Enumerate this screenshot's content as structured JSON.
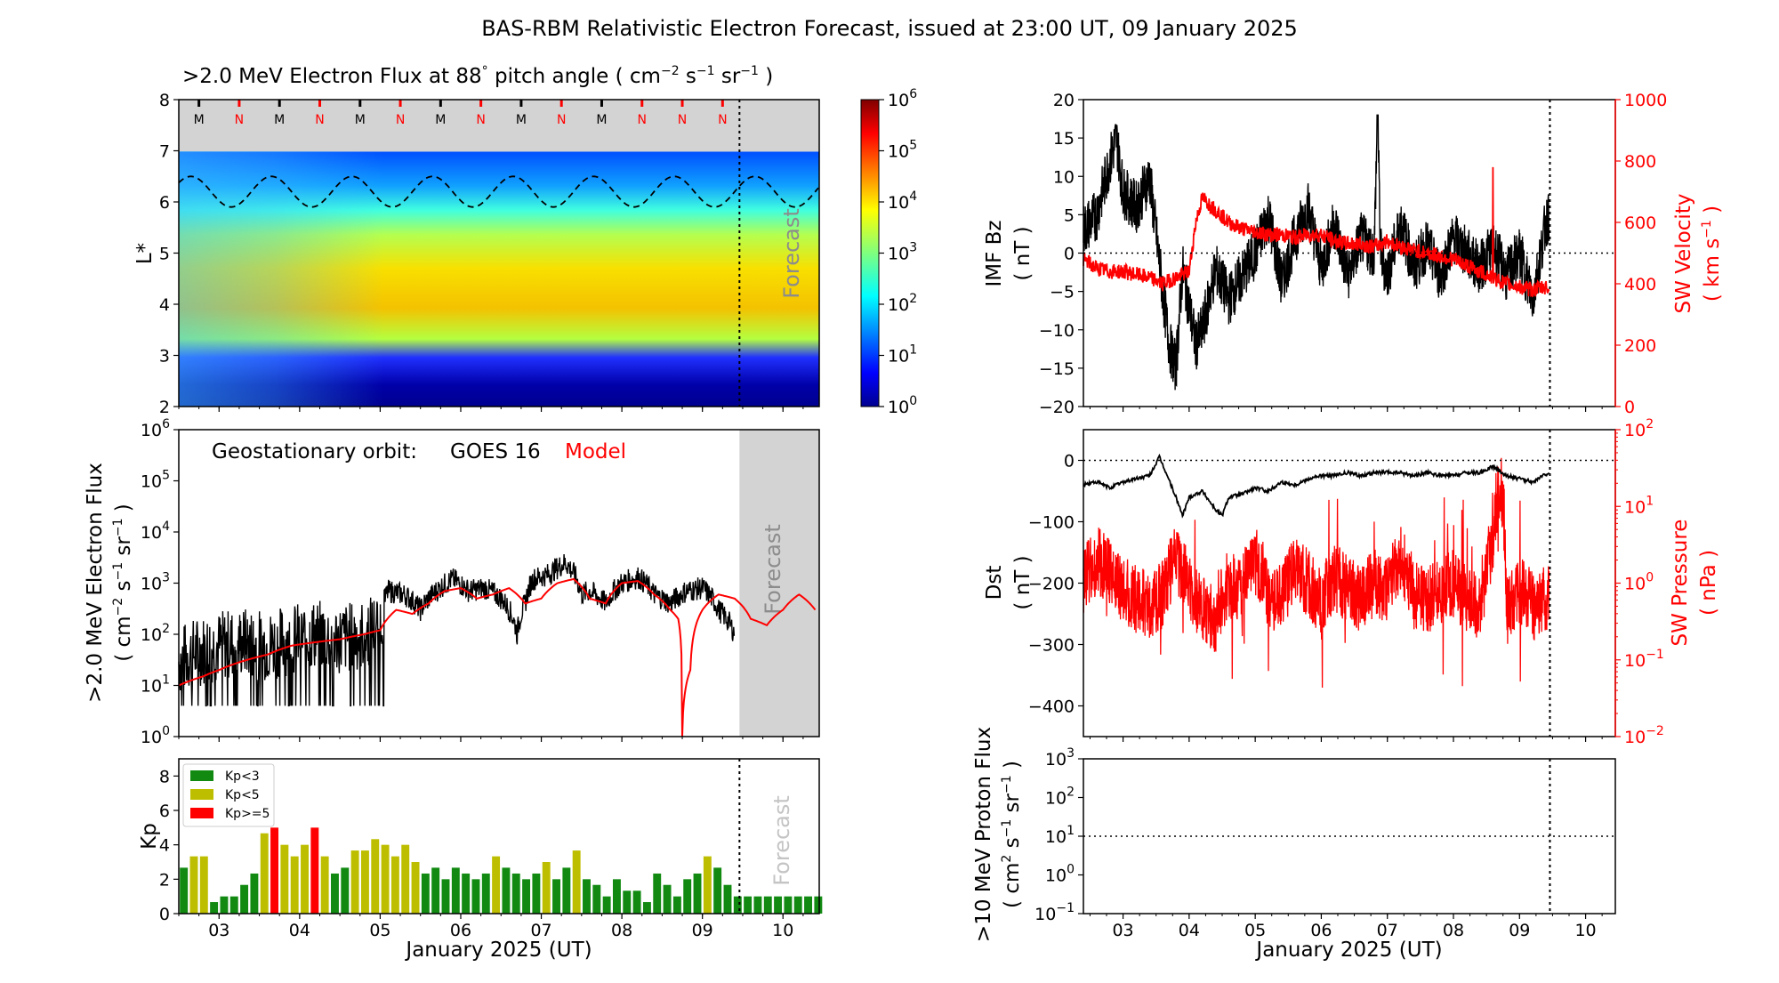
{
  "title": "BAS-RBM Relativistic Electron Forecast, issued at 23:00 UT, 09 January 2025",
  "colors": {
    "model": "#ff0000",
    "goes": "#000000",
    "kp_low": "#128a12",
    "kp_mid": "#bebe00",
    "kp_high": "#ff0000",
    "forecast_shade": "#d3d3d3"
  },
  "panels": {
    "flux_map": {
      "title_prefix": ">2.0 MeV Electron Flux at 88",
      "title_sup_deg": "°",
      "title_mid": " pitch angle ( cm",
      "title_sup_a": "−2",
      "title_mid2": " s",
      "title_sup_b": "−1",
      "title_mid3": " sr",
      "title_sup_c": "−1",
      "title_end": " )",
      "ylabel": "L*",
      "forecast_label": "Forecast",
      "mn_markers": [
        "M",
        "N",
        "M",
        "N",
        "M",
        "N",
        "M",
        "N",
        "M",
        "N",
        "M",
        "N",
        "N",
        "N"
      ],
      "colorbar_ticks": [
        "10",
        "10",
        "10",
        "10",
        "10",
        "10",
        "10"
      ],
      "colorbar_exps": [
        "0",
        "1",
        "2",
        "3",
        "4",
        "5",
        "6"
      ]
    },
    "geo": {
      "label_text": "Geostationary orbit:",
      "goes_label": "GOES 16",
      "model_label": "Model",
      "ylabel_line1": ">2.0 MeV Electron Flux",
      "ylabel_line2": "( cm",
      "ylabel_sup1": "−2",
      "ylabel_s": " s",
      "ylabel_sup2": "−1",
      "ylabel_sr": " sr",
      "ylabel_sup3": "−1",
      "ylabel_end": " )",
      "forecast_label": "Forecast"
    },
    "kp": {
      "ylabel": "Kp",
      "legend": [
        "Kp<3",
        "Kp<5",
        "Kp>=5"
      ],
      "forecast_label": "Forecast",
      "xlabel": "January 2025 (UT)"
    },
    "imf": {
      "ylabel_line1": "IMF Bz",
      "ylabel_line2": "( nT )",
      "right_label_line1": "SW Velocity",
      "right_label_line2": "( km s",
      "right_label_sup": "−1",
      "right_label_end": " )"
    },
    "dst": {
      "ylabel_line1": "Dst",
      "ylabel_line2": "( nT )",
      "right_label_line1": "SW Pressure",
      "right_label_line2": "( nPa )"
    },
    "proton": {
      "ylabel_line1": ">10 MeV Proton Flux",
      "ylabel_line2": "( cm",
      "ylabel_sup1": "2",
      "ylabel_s": " s",
      "ylabel_sup2": "−1",
      "ylabel_sr": " sr",
      "ylabel_sup3": "−1",
      "ylabel_end": " )",
      "xlabel": "January 2025 (UT)"
    }
  },
  "chart_data": [
    {
      "id": "flux_map",
      "type": "heatmap",
      "title": ">2.0 MeV Electron Flux at 88° pitch angle (cm^-2 s^-1 sr^-1)",
      "ylabel": "L*",
      "ylim": [
        2,
        8
      ],
      "yticks": [
        "2",
        "3",
        "4",
        "5",
        "6",
        "7",
        "8"
      ],
      "xlim": [
        2.5,
        10.45
      ],
      "colorbar_range_log10": [
        0,
        6
      ],
      "forecast_start_day": 9.46,
      "magnetopause_L_range": [
        5.9,
        6.5
      ]
    },
    {
      "id": "geo",
      "type": "line",
      "ylabel": ">2.0 MeV Electron Flux (cm^-2 s^-1 sr^-1)",
      "yscale": "log",
      "ylim_log10": [
        0,
        6
      ],
      "ytick_exps": [
        "0",
        "1",
        "2",
        "3",
        "4",
        "5",
        "6"
      ],
      "xlim": [
        2.5,
        10.45
      ],
      "forecast_start_day": 9.46,
      "series": [
        {
          "name": "GOES 16",
          "color": "black",
          "x": [
            2.5,
            2.8,
            3.0,
            3.3,
            3.6,
            3.9,
            4.2,
            4.5,
            4.8,
            5.0,
            5.1,
            5.3,
            5.5,
            5.7,
            5.9,
            6.1,
            6.3,
            6.5,
            6.7,
            6.8,
            6.9,
            7.1,
            7.3,
            7.5,
            7.6,
            7.8,
            8.0,
            8.2,
            8.4,
            8.6,
            8.8,
            9.0,
            9.2,
            9.4
          ],
          "y": [
            30,
            50,
            60,
            70,
            60,
            80,
            100,
            80,
            100,
            150,
            700,
            600,
            300,
            700,
            1200,
            700,
            800,
            500,
            100,
            400,
            1200,
            1500,
            2500,
            600,
            700,
            400,
            1000,
            1300,
            600,
            400,
            700,
            800,
            300,
            100
          ]
        },
        {
          "name": "Model",
          "color": "red",
          "x": [
            2.5,
            2.8,
            3.0,
            3.3,
            3.6,
            3.9,
            4.2,
            4.5,
            4.8,
            5.0,
            5.2,
            5.4,
            5.6,
            5.8,
            6.0,
            6.2,
            6.4,
            6.6,
            6.8,
            7.0,
            7.2,
            7.4,
            7.6,
            7.8,
            8.0,
            8.2,
            8.4,
            8.6,
            8.7,
            8.75,
            8.85,
            9.0,
            9.2,
            9.4,
            9.6,
            9.8,
            10.0,
            10.2,
            10.4
          ],
          "y": [
            10,
            15,
            20,
            30,
            40,
            60,
            70,
            80,
            100,
            120,
            300,
            250,
            400,
            700,
            800,
            500,
            600,
            800,
            400,
            500,
            1000,
            1200,
            500,
            400,
            1000,
            1100,
            600,
            300,
            200,
            1,
            20,
            300,
            600,
            500,
            200,
            150,
            300,
            600,
            300
          ]
        }
      ]
    },
    {
      "id": "kp",
      "type": "bar",
      "ylabel": "Kp",
      "xlabel": "January 2025 (UT)",
      "ylim": [
        0,
        9
      ],
      "yticks": [
        "0",
        "2",
        "4",
        "6",
        "8"
      ],
      "xlim": [
        2.5,
        10.45
      ],
      "xticks": [
        "03",
        "04",
        "05",
        "06",
        "07",
        "08",
        "09",
        "10"
      ],
      "forecast_start_day": 9.46,
      "bar_width_days": 0.125,
      "values": [
        2.67,
        3.33,
        3.33,
        0.67,
        1.0,
        1.0,
        1.67,
        2.33,
        4.67,
        5.0,
        4.0,
        3.33,
        4.0,
        5.0,
        3.33,
        2.33,
        2.67,
        3.67,
        3.67,
        4.33,
        4.0,
        3.33,
        4.0,
        3.0,
        2.33,
        2.67,
        2.0,
        2.67,
        2.33,
        2.0,
        2.33,
        3.33,
        2.67,
        2.33,
        2.0,
        2.33,
        3.0,
        2.0,
        2.67,
        3.67,
        2.0,
        1.67,
        1.0,
        2.0,
        1.33,
        1.33,
        0.67,
        2.33,
        1.67,
        1.0,
        2.0,
        2.33,
        3.33,
        2.67,
        1.67,
        1.0,
        1.0,
        1.0,
        1.0,
        1.0,
        1.0,
        1.0,
        1.0,
        1.0
      ],
      "legend": [
        "Kp<3",
        "Kp<5",
        "Kp>=5"
      ]
    },
    {
      "id": "imf",
      "type": "line",
      "ylabel": "IMF Bz (nT)",
      "ylim": [
        -20,
        20
      ],
      "yticks": [
        "−20",
        "−15",
        "−10",
        "−5",
        "0",
        "5",
        "10",
        "15",
        "20"
      ],
      "y2label": "SW Velocity (km s^-1)",
      "y2lim": [
        0,
        1000
      ],
      "y2ticks": [
        "0",
        "200",
        "400",
        "600",
        "800",
        "1000"
      ],
      "xlim": [
        2.4,
        10.45
      ],
      "forecast_start_day": 9.46,
      "series": [
        {
          "name": "IMF Bz",
          "color": "black",
          "x": [
            2.4,
            2.6,
            2.8,
            2.9,
            3.0,
            3.2,
            3.4,
            3.6,
            3.7,
            3.8,
            3.9,
            4.1,
            4.2,
            4.4,
            4.6,
            4.8,
            5.0,
            5.2,
            5.4,
            5.6,
            5.8,
            6.0,
            6.2,
            6.4,
            6.6,
            6.8,
            6.85,
            6.9,
            7.0,
            7.2,
            7.4,
            7.6,
            7.8,
            8.0,
            8.2,
            8.4,
            8.6,
            8.8,
            9.0,
            9.2,
            9.4,
            9.45
          ],
          "y": [
            3,
            5,
            12,
            15,
            8,
            6,
            10,
            -5,
            -12,
            -15,
            -2,
            -12,
            -10,
            -2,
            -6,
            -3,
            0,
            5,
            -4,
            2,
            6,
            -2,
            4,
            -3,
            2,
            0,
            18,
            0,
            -3,
            4,
            -2,
            1,
            -3,
            2,
            0,
            -2,
            1,
            -3,
            0,
            -6,
            4,
            5
          ]
        },
        {
          "name": "SW Velocity",
          "color": "red",
          "axis": "right",
          "x": [
            2.4,
            2.6,
            2.8,
            3.0,
            3.2,
            3.4,
            3.6,
            3.8,
            4.0,
            4.1,
            4.2,
            4.4,
            4.6,
            4.8,
            5.0,
            5.2,
            5.4,
            5.6,
            5.8,
            6.0,
            6.2,
            6.4,
            6.6,
            6.8,
            7.0,
            7.2,
            7.4,
            7.6,
            7.8,
            8.0,
            8.2,
            8.4,
            8.6,
            8.8,
            9.0,
            9.2,
            9.4,
            9.45
          ],
          "y": [
            480,
            450,
            440,
            440,
            430,
            420,
            400,
            420,
            440,
            600,
            680,
            640,
            600,
            580,
            570,
            560,
            560,
            550,
            560,
            560,
            540,
            530,
            530,
            520,
            540,
            520,
            510,
            500,
            490,
            480,
            460,
            440,
            420,
            400,
            390,
            380,
            390,
            380
          ]
        }
      ]
    },
    {
      "id": "dst",
      "type": "line",
      "ylabel": "Dst (nT)",
      "ylim": [
        -450,
        50
      ],
      "yticks": [
        "−400",
        "−300",
        "−200",
        "−100",
        "0"
      ],
      "y2label": "SW Pressure (nPa)",
      "y2scale": "log",
      "y2lim_log10": [
        -2,
        2
      ],
      "xlim": [
        2.4,
        10.45
      ],
      "forecast_start_day": 9.46,
      "series": [
        {
          "name": "Dst",
          "color": "black",
          "x": [
            2.4,
            2.6,
            2.8,
            3.0,
            3.2,
            3.4,
            3.55,
            3.65,
            3.8,
            3.9,
            4.0,
            4.2,
            4.4,
            4.5,
            4.6,
            4.8,
            5.0,
            5.2,
            5.4,
            5.6,
            5.8,
            6.0,
            6.2,
            6.4,
            6.6,
            6.8,
            7.0,
            7.2,
            7.4,
            7.6,
            7.8,
            8.0,
            8.2,
            8.4,
            8.6,
            8.8,
            9.0,
            9.2,
            9.45
          ],
          "y": [
            -40,
            -35,
            -45,
            -35,
            -30,
            -25,
            5,
            -20,
            -60,
            -90,
            -60,
            -50,
            -80,
            -90,
            -60,
            -55,
            -45,
            -50,
            -35,
            -40,
            -30,
            -25,
            -25,
            -20,
            -25,
            -20,
            -20,
            -20,
            -25,
            -20,
            -25,
            -25,
            -20,
            -20,
            -10,
            -25,
            -30,
            -35,
            -20
          ]
        },
        {
          "name": "SW Pressure",
          "color": "red",
          "axis": "right",
          "x": [
            2.4,
            2.6,
            2.8,
            3.0,
            3.2,
            3.4,
            3.6,
            3.8,
            4.0,
            4.2,
            4.4,
            4.6,
            4.8,
            5.0,
            5.2,
            5.4,
            5.6,
            5.8,
            6.0,
            6.2,
            6.4,
            6.6,
            6.8,
            7.0,
            7.2,
            7.4,
            7.6,
            7.8,
            8.0,
            8.2,
            8.4,
            8.6,
            8.7,
            8.8,
            9.0,
            9.2,
            9.45
          ],
          "y": [
            1.0,
            2.0,
            1.5,
            0.8,
            0.6,
            0.5,
            0.7,
            2.0,
            0.8,
            0.5,
            0.3,
            1.0,
            0.8,
            2.0,
            0.7,
            0.6,
            1.5,
            1.0,
            0.5,
            1.2,
            0.8,
            0.6,
            1.0,
            0.8,
            2.0,
            0.7,
            0.6,
            0.8,
            1.0,
            0.6,
            0.5,
            3.0,
            20.0,
            0.4,
            0.8,
            0.5,
            0.7
          ]
        }
      ]
    },
    {
      "id": "proton",
      "type": "line",
      "ylabel": ">10 MeV Proton Flux (cm^2 s^-1 sr^-1)",
      "xlabel": "January 2025 (UT)",
      "yscale": "log",
      "ylim_log10": [
        -1,
        3
      ],
      "ytick_exps": [
        "−1",
        "0",
        "1",
        "2",
        "3"
      ],
      "xlim": [
        2.4,
        10.45
      ],
      "xticks": [
        "03",
        "04",
        "05",
        "06",
        "07",
        "08",
        "09",
        "10"
      ],
      "forecast_start_day": 9.46,
      "threshold": 10
    }
  ]
}
